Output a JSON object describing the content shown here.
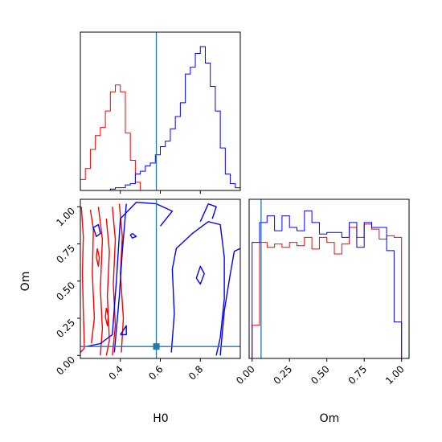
{
  "chart_data": {
    "type": "corner",
    "parameters": [
      "H0",
      "Om"
    ],
    "axes": {
      "H0": {
        "range": [
          0.2,
          1.0
        ],
        "ticks": [
          0.4,
          0.6,
          0.8
        ],
        "tick_labels": [
          "0.4",
          "0.6",
          "0.8"
        ],
        "label": "H0"
      },
      "Om": {
        "range": [
          -0.02,
          1.05
        ],
        "ticks": [
          0.0,
          0.25,
          0.5,
          0.75,
          1.0
        ],
        "tick_labels": [
          "0.00",
          "0.25",
          "0.50",
          "0.75",
          "1.00"
        ],
        "label": "Om"
      }
    },
    "truth": {
      "H0": 0.58,
      "Om": 0.06,
      "color": "#1f77b4"
    },
    "series_colors": {
      "red": "#ff0000",
      "blue": "#0000ff"
    },
    "hist_H0": {
      "bin_edges": [
        0.2,
        0.225,
        0.25,
        0.275,
        0.3,
        0.325,
        0.35,
        0.375,
        0.4,
        0.425,
        0.45,
        0.475,
        0.5,
        0.525,
        0.55,
        0.575,
        0.6,
        0.625,
        0.65,
        0.675,
        0.7,
        0.725,
        0.75,
        0.775,
        0.8,
        0.825,
        0.85,
        0.875,
        0.9,
        0.925,
        0.95,
        0.975,
        1.0
      ],
      "red": [
        0.08,
        0.16,
        0.3,
        0.4,
        0.46,
        0.58,
        0.72,
        0.77,
        0.72,
        0.42,
        0.22,
        0.06,
        0,
        0,
        0,
        0,
        0,
        0,
        0,
        0,
        0,
        0,
        0,
        0,
        0,
        0,
        0,
        0,
        0,
        0,
        0,
        0
      ],
      "blue": [
        0,
        0,
        0,
        0,
        0,
        0,
        0.01,
        0.02,
        0.02,
        0.04,
        0.05,
        0.12,
        0.14,
        0.18,
        0.2,
        0.26,
        0.32,
        0.36,
        0.45,
        0.54,
        0.64,
        0.85,
        0.9,
        1.0,
        1.05,
        0.93,
        0.76,
        0.58,
        0.31,
        0.12,
        0.05,
        0.02
      ]
    },
    "hist_Om": {
      "bin_edges": [
        0.0,
        0.05,
        0.1,
        0.15,
        0.2,
        0.25,
        0.3,
        0.35,
        0.4,
        0.45,
        0.5,
        0.55,
        0.6,
        0.65,
        0.7,
        0.75,
        0.8,
        0.85,
        0.9,
        0.95,
        1.0
      ],
      "red": [
        0.2,
        0.7,
        0.67,
        0.69,
        0.67,
        0.7,
        0.68,
        0.73,
        0.66,
        0.73,
        0.7,
        0.63,
        0.69,
        0.79,
        0.73,
        0.81,
        0.78,
        0.72,
        0.74,
        0.73
      ],
      "blue": [
        0.7,
        0.82,
        0.86,
        0.77,
        0.86,
        0.79,
        0.77,
        0.89,
        0.82,
        0.75,
        0.76,
        0.76,
        0.73,
        0.82,
        0.67,
        0.82,
        0.79,
        0.79,
        0.65,
        0.22
      ]
    },
    "contours": {
      "red": [
        [
          [
            0.205,
            1.0
          ],
          [
            0.215,
            0.8
          ],
          [
            0.21,
            0.55
          ],
          [
            0.215,
            0.3
          ],
          [
            0.22,
            0.05
          ],
          [
            0.2,
            0.02
          ]
        ],
        [
          [
            0.25,
            0.98
          ],
          [
            0.265,
            0.85
          ],
          [
            0.26,
            0.55
          ],
          [
            0.27,
            0.25
          ],
          [
            0.255,
            0.08
          ]
        ],
        [
          [
            0.29,
            1.0
          ],
          [
            0.31,
            0.78
          ],
          [
            0.3,
            0.45
          ],
          [
            0.31,
            0.18
          ],
          [
            0.3,
            0.0
          ]
        ],
        [
          [
            0.33,
            0.92
          ],
          [
            0.345,
            0.7
          ],
          [
            0.335,
            0.4
          ],
          [
            0.345,
            0.1
          ],
          [
            0.33,
            0.0
          ]
        ],
        [
          [
            0.36,
            1.0
          ],
          [
            0.375,
            0.78
          ],
          [
            0.365,
            0.48
          ],
          [
            0.375,
            0.2
          ],
          [
            0.36,
            0.0
          ]
        ],
        [
          [
            0.395,
            1.02
          ],
          [
            0.41,
            0.8
          ],
          [
            0.4,
            0.55
          ],
          [
            0.415,
            0.25
          ],
          [
            0.405,
            0.02
          ]
        ],
        [
          [
            0.285,
            0.72
          ],
          [
            0.295,
            0.66
          ],
          [
            0.29,
            0.6
          ],
          [
            0.28,
            0.66
          ],
          [
            0.285,
            0.72
          ]
        ],
        [
          [
            0.33,
            0.32
          ],
          [
            0.34,
            0.26
          ],
          [
            0.335,
            0.2
          ],
          [
            0.325,
            0.26
          ],
          [
            0.33,
            0.32
          ]
        ]
      ],
      "blue": [
        [
          [
            0.23,
            0.06
          ],
          [
            0.3,
            0.08
          ],
          [
            0.36,
            0.14
          ],
          [
            0.38,
            0.5
          ],
          [
            0.4,
            0.92
          ],
          [
            0.48,
            1.03
          ],
          [
            0.58,
            1.02
          ],
          [
            0.66,
            0.97
          ],
          [
            0.6,
            0.87
          ]
        ],
        [
          [
            0.37,
            0.02
          ],
          [
            0.395,
            0.4
          ],
          [
            0.41,
            0.7
          ],
          [
            0.43,
            1.02
          ]
        ],
        [
          [
            0.4,
            0.14
          ],
          [
            0.43,
            0.2
          ],
          [
            0.43,
            0.14
          ],
          [
            0.4,
            0.14
          ]
        ],
        [
          [
            0.655,
            0.02
          ],
          [
            0.67,
            0.28
          ],
          [
            0.66,
            0.58
          ],
          [
            0.68,
            0.72
          ],
          [
            0.76,
            0.82
          ],
          [
            0.84,
            0.9
          ],
          [
            0.9,
            0.88
          ],
          [
            0.92,
            0.66
          ],
          [
            0.92,
            0.38
          ],
          [
            0.9,
            0.12
          ],
          [
            0.88,
            0.0
          ]
        ],
        [
          [
            0.78,
            0.52
          ],
          [
            0.8,
            0.6
          ],
          [
            0.82,
            0.55
          ],
          [
            0.8,
            0.48
          ],
          [
            0.78,
            0.52
          ]
        ],
        [
          [
            0.9,
            0.0
          ],
          [
            0.92,
            0.3
          ],
          [
            0.95,
            0.55
          ],
          [
            0.97,
            0.7
          ],
          [
            1.0,
            0.72
          ]
        ],
        [
          [
            0.8,
            0.9
          ],
          [
            0.84,
            1.02
          ],
          [
            0.88,
            1.0
          ],
          [
            0.86,
            0.92
          ]
        ],
        [
          [
            0.265,
            0.86
          ],
          [
            0.29,
            0.88
          ],
          [
            0.3,
            0.82
          ],
          [
            0.28,
            0.8
          ],
          [
            0.265,
            0.86
          ]
        ],
        [
          [
            0.46,
            0.82
          ],
          [
            0.48,
            0.8
          ],
          [
            0.46,
            0.79
          ],
          [
            0.45,
            0.81
          ],
          [
            0.46,
            0.82
          ]
        ]
      ]
    }
  }
}
